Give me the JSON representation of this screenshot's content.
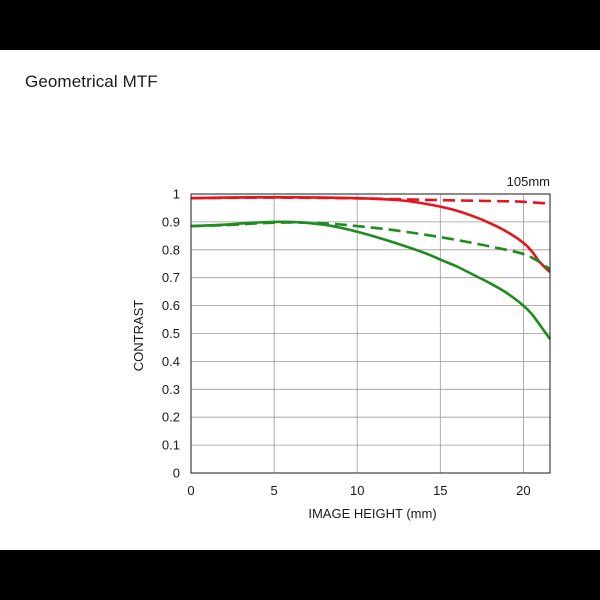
{
  "page": {
    "title": "Geometrical MTF"
  },
  "chart_data": {
    "type": "line",
    "title": "",
    "subtitle": "105mm",
    "xlabel": "IMAGE HEIGHT (mm)",
    "ylabel": "CONTRAST",
    "xlim": [
      0,
      21.6
    ],
    "ylim": [
      0,
      1
    ],
    "xticks": [
      0,
      5,
      10,
      15,
      20
    ],
    "yticks": [
      0,
      0.1,
      0.2,
      0.3,
      0.4,
      0.5,
      0.6,
      0.7,
      0.8,
      0.9,
      1
    ],
    "grid": true,
    "legend": "none",
    "series": [
      {
        "color": "#e8141c",
        "style": "solid",
        "x": [
          0,
          2,
          4,
          6,
          8,
          10,
          12,
          13,
          14,
          15,
          16,
          17,
          18,
          19,
          20,
          20.5,
          21,
          21.6
        ],
        "y": [
          0.985,
          0.987,
          0.988,
          0.988,
          0.987,
          0.985,
          0.98,
          0.975,
          0.966,
          0.955,
          0.94,
          0.92,
          0.895,
          0.865,
          0.825,
          0.795,
          0.755,
          0.72
        ]
      },
      {
        "color": "#e8141c",
        "style": "dashed",
        "x": [
          0,
          4,
          8,
          12,
          15,
          18,
          20,
          21.6
        ],
        "y": [
          0.985,
          0.987,
          0.986,
          0.982,
          0.978,
          0.975,
          0.972,
          0.965
        ]
      },
      {
        "color": "#1e8c1e",
        "style": "solid",
        "x": [
          0,
          2,
          4,
          6,
          8,
          10,
          12,
          14,
          15,
          16,
          17,
          18,
          19,
          20,
          20.5,
          21,
          21.6
        ],
        "y": [
          0.885,
          0.89,
          0.898,
          0.9,
          0.89,
          0.865,
          0.83,
          0.79,
          0.765,
          0.74,
          0.71,
          0.68,
          0.645,
          0.6,
          0.57,
          0.53,
          0.48
        ]
      },
      {
        "color": "#1e8c1e",
        "style": "dashed",
        "x": [
          0,
          2,
          4,
          6,
          8,
          10,
          12,
          14,
          16,
          18,
          20,
          21,
          21.6
        ],
        "y": [
          0.885,
          0.888,
          0.895,
          0.898,
          0.895,
          0.885,
          0.872,
          0.855,
          0.835,
          0.812,
          0.785,
          0.755,
          0.73
        ]
      }
    ]
  }
}
